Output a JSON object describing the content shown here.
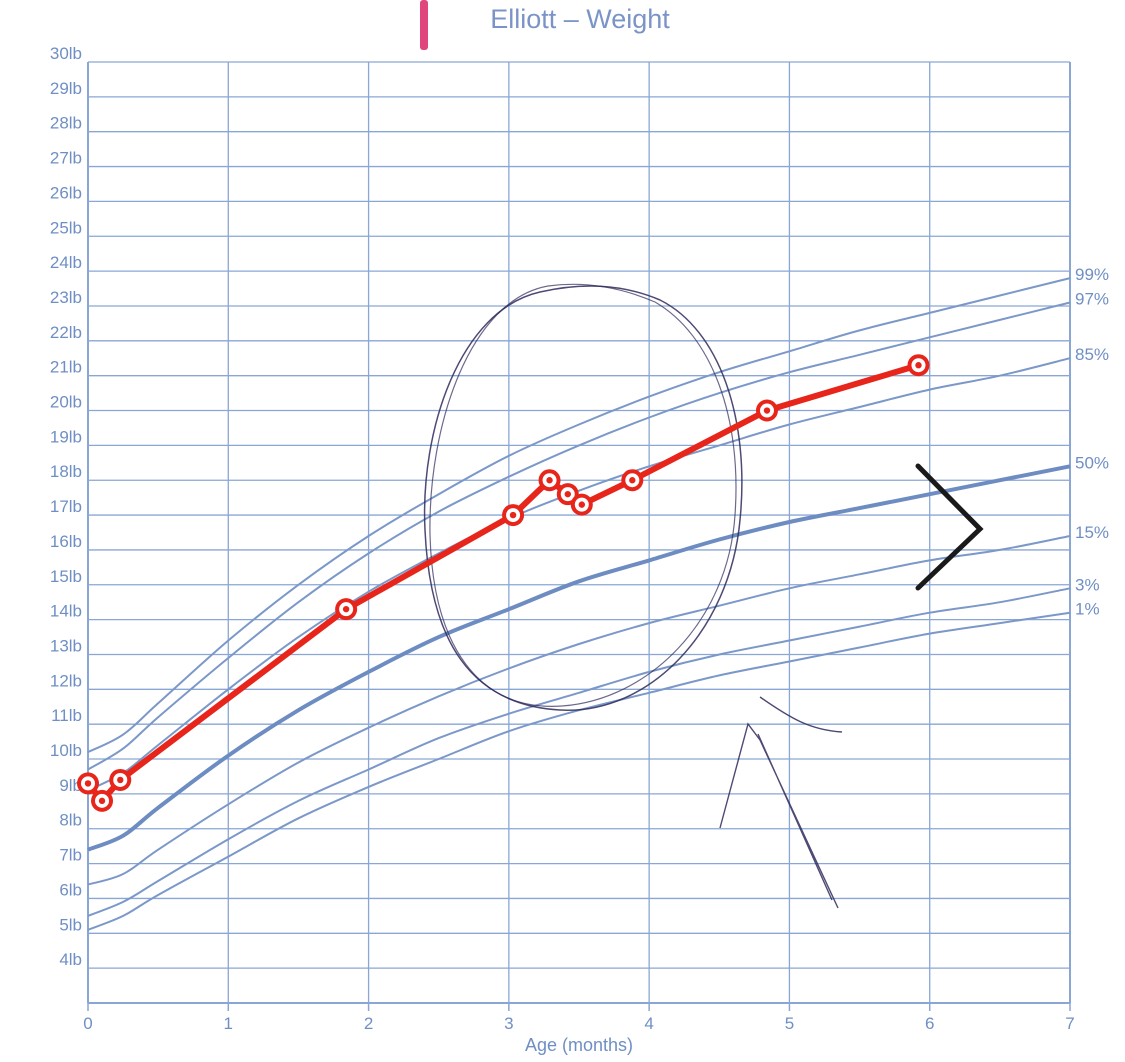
{
  "colors": {
    "grid": "#8aa6d4",
    "percentile_line": "#7b98c9",
    "median_line": "#6d8cc2",
    "child_line": "#e8251b",
    "title_text": "#7b94c8",
    "tick_text": "#6f8fc4",
    "marker_pink": "#e0457b",
    "pen_annotation": "#2e2a5c",
    "chevron": "#1a1a1a"
  },
  "chart_data": {
    "type": "line",
    "title": "Elliott – Weight",
    "xlabel": "Age (months)",
    "ylabel": "",
    "xlim": [
      0,
      7
    ],
    "ylim": [
      3,
      30
    ],
    "grid": true,
    "x_ticks": [
      "0",
      "1",
      "2",
      "3",
      "4",
      "5",
      "6",
      "7"
    ],
    "y_ticks": [
      "4lb",
      "5lb",
      "6lb",
      "7lb",
      "8lb",
      "9lb",
      "10lb",
      "11lb",
      "12lb",
      "13lb",
      "14lb",
      "15lb",
      "16lb",
      "17lb",
      "18lb",
      "19lb",
      "20lb",
      "21lb",
      "22lb",
      "23lb",
      "24lb",
      "25lb",
      "26lb",
      "27lb",
      "28lb",
      "29lb",
      "30lb"
    ],
    "y_tick_values": [
      4,
      5,
      6,
      7,
      8,
      9,
      10,
      11,
      12,
      13,
      14,
      15,
      16,
      17,
      18,
      19,
      20,
      21,
      22,
      23,
      24,
      25,
      26,
      27,
      28,
      29,
      30
    ],
    "percentile_x": [
      0,
      0.25,
      0.5,
      1,
      1.5,
      2,
      2.5,
      3,
      3.5,
      4,
      4.5,
      5,
      5.5,
      6,
      6.5,
      7
    ],
    "percentiles": [
      {
        "name": "99%",
        "values": [
          10.2,
          10.7,
          11.6,
          13.4,
          15.0,
          16.4,
          17.6,
          18.7,
          19.6,
          20.4,
          21.1,
          21.7,
          22.3,
          22.8,
          23.3,
          23.8
        ]
      },
      {
        "name": "97%",
        "values": [
          9.7,
          10.3,
          11.2,
          12.9,
          14.5,
          15.9,
          17.1,
          18.1,
          19.0,
          19.8,
          20.5,
          21.1,
          21.6,
          22.1,
          22.6,
          23.1
        ]
      },
      {
        "name": "85%",
        "values": [
          9.1,
          9.6,
          10.4,
          12.0,
          13.5,
          14.8,
          15.9,
          16.9,
          17.7,
          18.4,
          19.0,
          19.6,
          20.1,
          20.6,
          21.0,
          21.5
        ]
      },
      {
        "name": "50%",
        "values": [
          7.4,
          7.8,
          8.6,
          10.1,
          11.4,
          12.5,
          13.5,
          14.3,
          15.1,
          15.7,
          16.3,
          16.8,
          17.2,
          17.6,
          18.0,
          18.4
        ]
      },
      {
        "name": "15%",
        "values": [
          6.4,
          6.7,
          7.4,
          8.7,
          9.9,
          10.9,
          11.8,
          12.6,
          13.3,
          13.9,
          14.4,
          14.9,
          15.3,
          15.7,
          16.0,
          16.4
        ]
      },
      {
        "name": "3%",
        "values": [
          5.5,
          5.9,
          6.5,
          7.7,
          8.8,
          9.7,
          10.6,
          11.3,
          11.9,
          12.5,
          13.0,
          13.4,
          13.8,
          14.2,
          14.5,
          14.9
        ]
      },
      {
        "name": "1%",
        "values": [
          5.1,
          5.5,
          6.1,
          7.2,
          8.3,
          9.2,
          10.0,
          10.8,
          11.4,
          11.9,
          12.4,
          12.8,
          13.2,
          13.6,
          13.9,
          14.2
        ]
      }
    ],
    "median_series_name": "50%",
    "measurements": {
      "x": [
        0.0,
        0.1,
        0.23,
        1.84,
        3.03,
        3.29,
        3.42,
        3.52,
        3.88,
        4.84,
        5.92
      ],
      "y": [
        9.3,
        8.8,
        9.4,
        14.3,
        17.0,
        18.0,
        17.6,
        17.3,
        18.0,
        20.0,
        21.3
      ]
    }
  }
}
